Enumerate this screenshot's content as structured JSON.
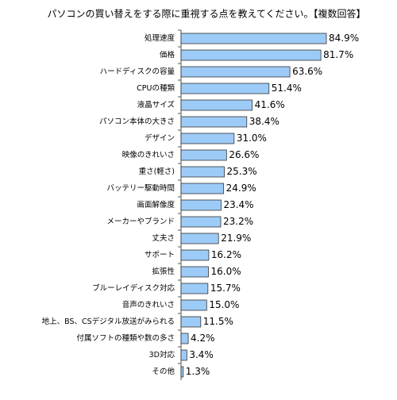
{
  "chart_data": {
    "type": "hbar",
    "title": "パソコンの買い替えをする際に重視する点を教えてください。【複数回答】",
    "categories": [
      "処理速度",
      "価格",
      "ハードディスクの容量",
      "CPUの種類",
      "液晶サイズ",
      "パソコン本体の大きさ",
      "デザイン",
      "映像のきれいさ",
      "重さ(軽さ)",
      "バッテリー駆動時間",
      "画面解像度",
      "メーカーやブランド",
      "丈夫さ",
      "サポート",
      "拡張性",
      "ブルーレイディスク対応",
      "音声のきれいさ",
      "地上、BS、CSデジタル放送がみられる",
      "付属ソフトの種類や数の多さ",
      "3D対応",
      "その他"
    ],
    "values": [
      84.9,
      81.7,
      63.6,
      51.4,
      41.6,
      38.4,
      31.0,
      26.6,
      25.3,
      24.9,
      23.4,
      23.2,
      21.9,
      16.2,
      16.0,
      15.7,
      15.0,
      11.5,
      4.2,
      3.4,
      1.3
    ],
    "value_labels": [
      "84.9%",
      "81.7%",
      "63.6%",
      "51.4%",
      "41.6%",
      "38.4%",
      "31.0%",
      "26.6%",
      "25.3%",
      "24.9%",
      "23.4%",
      "23.2%",
      "21.9%",
      "16.2%",
      "16.0%",
      "15.7%",
      "15.0%",
      "11.5%",
      "4.2%",
      "3.4%",
      "1.3%"
    ],
    "color": "#9dcbf7"
  }
}
